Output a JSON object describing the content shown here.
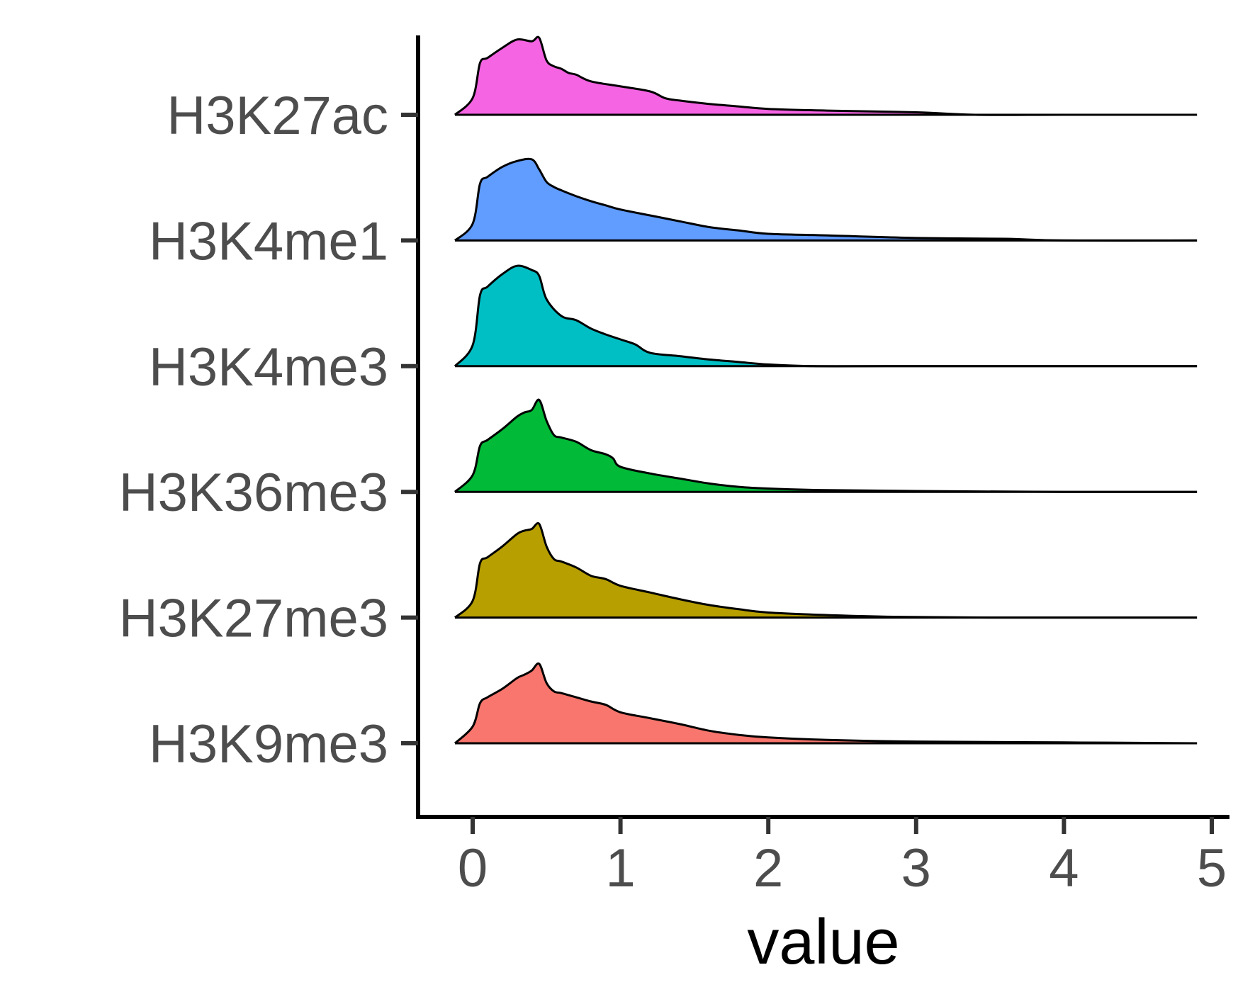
{
  "chart_data": {
    "type": "ridgeline",
    "title": "",
    "xlabel": "value",
    "ylabel": "",
    "xlim": [
      -0.35,
      5.1
    ],
    "x_ticks": [
      "0",
      "1",
      "2",
      "3",
      "4",
      "5"
    ],
    "x_tick_values": [
      0,
      1,
      2,
      3,
      4,
      5
    ],
    "grid": false,
    "legend": "none",
    "categories": [
      "H3K27ac",
      "H3K4me1",
      "H3K4me3",
      "H3K36me3",
      "H3K27me3",
      "H3K9me3"
    ],
    "series": [
      {
        "name": "H3K27ac",
        "color": "#F564E3",
        "x": [
          -0.12,
          0.0,
          0.05,
          0.1,
          0.2,
          0.3,
          0.4,
          0.45,
          0.5,
          0.55,
          0.6,
          0.65,
          0.7,
          0.8,
          1.0,
          1.2,
          1.3,
          1.4,
          1.6,
          1.8,
          2.0,
          2.4,
          3.0,
          3.4,
          4.0,
          4.9
        ],
        "y": [
          0.0,
          0.2,
          0.62,
          0.68,
          0.8,
          0.9,
          0.88,
          0.92,
          0.65,
          0.58,
          0.55,
          0.5,
          0.48,
          0.4,
          0.34,
          0.28,
          0.2,
          0.17,
          0.13,
          0.1,
          0.07,
          0.05,
          0.03,
          0.0,
          0.0,
          0.0
        ]
      },
      {
        "name": "H3K4me1",
        "color": "#619CFF",
        "x": [
          -0.12,
          0.0,
          0.05,
          0.1,
          0.2,
          0.3,
          0.4,
          0.45,
          0.5,
          0.55,
          0.6,
          0.7,
          0.8,
          0.9,
          1.0,
          1.2,
          1.4,
          1.6,
          1.8,
          2.0,
          2.4,
          3.0,
          3.6,
          4.0,
          4.9
        ],
        "y": [
          0.0,
          0.2,
          0.68,
          0.76,
          0.88,
          0.95,
          0.97,
          0.85,
          0.7,
          0.64,
          0.6,
          0.53,
          0.47,
          0.42,
          0.37,
          0.3,
          0.23,
          0.16,
          0.12,
          0.08,
          0.06,
          0.03,
          0.02,
          0.0,
          0.0
        ]
      },
      {
        "name": "H3K4me3",
        "color": "#00BFC4",
        "x": [
          -0.12,
          0.0,
          0.05,
          0.1,
          0.2,
          0.3,
          0.4,
          0.45,
          0.5,
          0.6,
          0.7,
          0.8,
          0.9,
          1.0,
          1.1,
          1.2,
          1.4,
          1.6,
          1.8,
          2.0,
          2.3,
          2.8,
          3.5,
          4.9
        ],
        "y": [
          0.0,
          0.25,
          0.85,
          0.95,
          1.1,
          1.2,
          1.15,
          1.08,
          0.8,
          0.6,
          0.55,
          0.45,
          0.38,
          0.32,
          0.26,
          0.16,
          0.12,
          0.08,
          0.05,
          0.02,
          0.0,
          0.0,
          0.0,
          0.0
        ]
      },
      {
        "name": "H3K36me3",
        "color": "#00BA38",
        "x": [
          -0.12,
          0.0,
          0.05,
          0.1,
          0.2,
          0.3,
          0.35,
          0.4,
          0.45,
          0.5,
          0.55,
          0.6,
          0.7,
          0.8,
          0.9,
          0.95,
          1.0,
          1.2,
          1.4,
          1.6,
          1.8,
          2.0,
          2.4,
          3.0,
          4.0,
          4.9
        ],
        "y": [
          0.0,
          0.2,
          0.55,
          0.62,
          0.75,
          0.9,
          0.95,
          0.98,
          1.1,
          0.85,
          0.68,
          0.65,
          0.6,
          0.5,
          0.45,
          0.4,
          0.3,
          0.22,
          0.16,
          0.1,
          0.06,
          0.04,
          0.02,
          0.01,
          0.0,
          0.0
        ]
      },
      {
        "name": "H3K27me3",
        "color": "#B79F00",
        "x": [
          -0.12,
          0.0,
          0.05,
          0.1,
          0.2,
          0.3,
          0.35,
          0.4,
          0.45,
          0.5,
          0.55,
          0.6,
          0.7,
          0.8,
          0.9,
          1.0,
          1.2,
          1.4,
          1.6,
          1.8,
          2.0,
          2.4,
          2.8,
          3.5,
          4.9
        ],
        "y": [
          0.0,
          0.2,
          0.65,
          0.72,
          0.85,
          1.0,
          1.04,
          1.06,
          1.12,
          0.85,
          0.7,
          0.67,
          0.6,
          0.5,
          0.46,
          0.38,
          0.3,
          0.22,
          0.15,
          0.1,
          0.06,
          0.03,
          0.01,
          0.0,
          0.0
        ]
      },
      {
        "name": "H3K9me3",
        "color": "#F8766D",
        "x": [
          -0.12,
          0.0,
          0.05,
          0.1,
          0.2,
          0.3,
          0.35,
          0.4,
          0.45,
          0.5,
          0.55,
          0.6,
          0.7,
          0.8,
          0.9,
          1.0,
          1.2,
          1.4,
          1.6,
          1.8,
          2.0,
          2.4,
          3.0,
          4.0,
          4.9
        ],
        "y": [
          0.0,
          0.2,
          0.48,
          0.55,
          0.65,
          0.78,
          0.82,
          0.87,
          0.95,
          0.72,
          0.62,
          0.6,
          0.55,
          0.5,
          0.46,
          0.37,
          0.3,
          0.23,
          0.15,
          0.1,
          0.07,
          0.04,
          0.02,
          0.01,
          0.0
        ]
      }
    ]
  }
}
